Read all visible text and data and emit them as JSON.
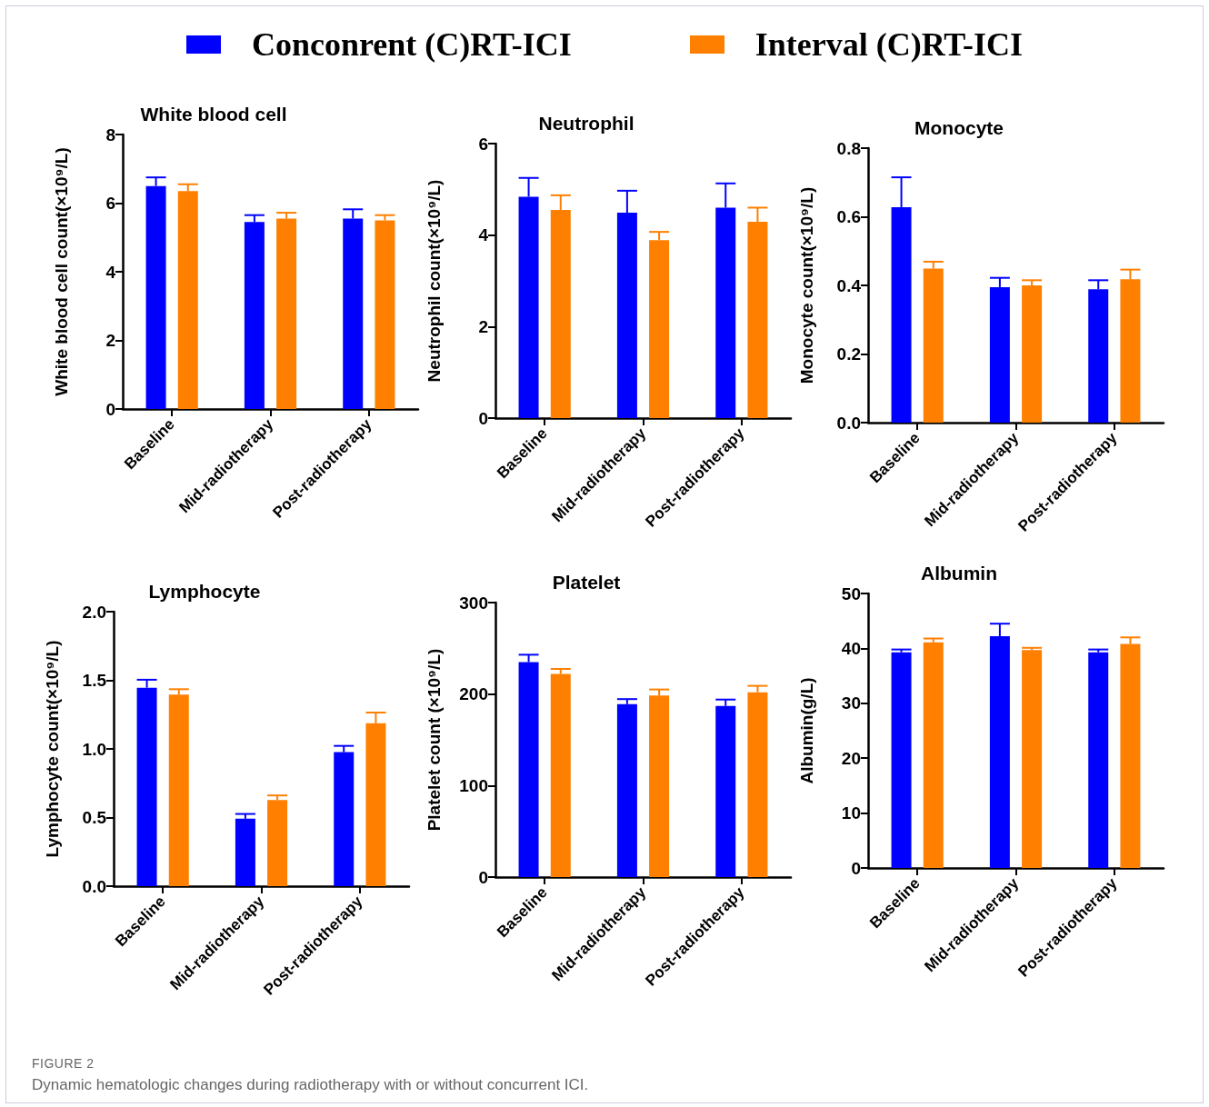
{
  "chart_data": [
    {
      "type": "bar",
      "title": "White blood cell",
      "ylabel": "White blood cell count(×10⁹/L)",
      "categories": [
        "Baseline",
        "Mid-radiotherapy",
        "Post-radiotherapy"
      ],
      "legend": "top",
      "grid": false,
      "ylim": [
        0,
        8
      ],
      "yticks": [
        0,
        2,
        4,
        6,
        8
      ],
      "annotations": [
        "FIGURE 2",
        "Dynamic hematologic changes during radiotherapy with or without concurrent ICI."
      ],
      "series": [
        {
          "name": "Conconrent (C)RT-ICI",
          "color": "#0000ff",
          "values": [
            6.5,
            5.45,
            5.55
          ],
          "errors": [
            0.25,
            0.2,
            0.27
          ]
        },
        {
          "name": "Interval (C)RT-ICI",
          "color": "#ff7f00",
          "values": [
            6.35,
            5.55,
            5.5
          ],
          "errors": [
            0.2,
            0.17,
            0.15
          ]
        }
      ]
    },
    {
      "type": "bar",
      "title": "Neutrophil",
      "ylabel": "Neutrophil count(×10⁹/L)",
      "categories": [
        "Baseline",
        "Mid-radiotherapy",
        "Post-radiotherapy"
      ],
      "grid": false,
      "ylim": [
        0,
        6
      ],
      "yticks": [
        0,
        2,
        4,
        6
      ],
      "series": [
        {
          "color": "#0000ff",
          "values": [
            4.84,
            4.49,
            4.6
          ],
          "errors": [
            0.41,
            0.48,
            0.53
          ]
        },
        {
          "color": "#ff7f00",
          "values": [
            4.55,
            3.89,
            4.29
          ],
          "errors": [
            0.32,
            0.18,
            0.31
          ]
        }
      ]
    },
    {
      "type": "bar",
      "title": "Monocyte",
      "ylabel": "Monocyte count(×10⁹/L)",
      "categories": [
        "Baseline",
        "Mid-radiotherapy",
        "Post-radiotherapy"
      ],
      "grid": false,
      "ylim": [
        0,
        0.8
      ],
      "yticks": [
        {
          "value": 0,
          "label": "0.0"
        },
        0.2,
        0.4,
        0.6,
        0.8
      ],
      "series": [
        {
          "color": "#0000ff",
          "values": [
            0.628,
            0.395,
            0.389
          ],
          "errors": [
            0.087,
            0.027,
            0.026
          ]
        },
        {
          "color": "#ff7f00",
          "values": [
            0.449,
            0.4,
            0.418
          ],
          "errors": [
            0.02,
            0.015,
            0.028
          ]
        }
      ]
    },
    {
      "type": "bar",
      "title": "Lymphocyte",
      "ylabel": "Lymphocyte count(×10⁹/L)",
      "categories": [
        "Baseline",
        "Mid-radiotherapy",
        "Post-radiotherapy"
      ],
      "grid": false,
      "ylim": [
        0,
        2
      ],
      "yticks": [
        {
          "value": 0,
          "label": "0.0"
        },
        0.5,
        {
          "value": 1,
          "label": "1.0"
        },
        1.5,
        {
          "value": 2,
          "label": "2.0"
        }
      ],
      "series": [
        {
          "color": "#0000ff",
          "values": [
            1.446,
            0.491,
            0.976
          ],
          "errors": [
            0.058,
            0.035,
            0.046
          ]
        },
        {
          "color": "#ff7f00",
          "values": [
            1.395,
            0.628,
            1.187
          ],
          "errors": [
            0.04,
            0.033,
            0.078
          ]
        }
      ]
    },
    {
      "type": "bar",
      "title": "Platelet",
      "ylabel": "Platelet count (×10⁹/L)",
      "categories": [
        "Baseline",
        "Mid-radiotherapy",
        "Post-radiotherapy"
      ],
      "grid": false,
      "ylim": [
        0,
        300
      ],
      "yticks": [
        0,
        100,
        200,
        300
      ],
      "series": [
        {
          "color": "#0000ff",
          "values": [
            235,
            189,
            187
          ],
          "errors": [
            8,
            5.5,
            7
          ]
        },
        {
          "color": "#ff7f00",
          "values": [
            222,
            198.5,
            202
          ],
          "errors": [
            5.5,
            6.5,
            7
          ]
        }
      ]
    },
    {
      "type": "bar",
      "title": "Albumin",
      "ylabel": "Albumin(g/L)",
      "categories": [
        "Baseline",
        "Mid-radiotherapy",
        "Post-radiotherapy"
      ],
      "grid": false,
      "ylim": [
        0,
        50
      ],
      "yticks": [
        0,
        10,
        20,
        30,
        40,
        50
      ],
      "series": [
        {
          "color": "#0000ff",
          "values": [
            39.3,
            42.2,
            39.3
          ],
          "errors": [
            0.5,
            2.3,
            0.5
          ]
        },
        {
          "color": "#ff7f00",
          "values": [
            41.1,
            39.7,
            40.8
          ],
          "errors": [
            0.7,
            0.4,
            1.2
          ]
        }
      ]
    }
  ]
}
